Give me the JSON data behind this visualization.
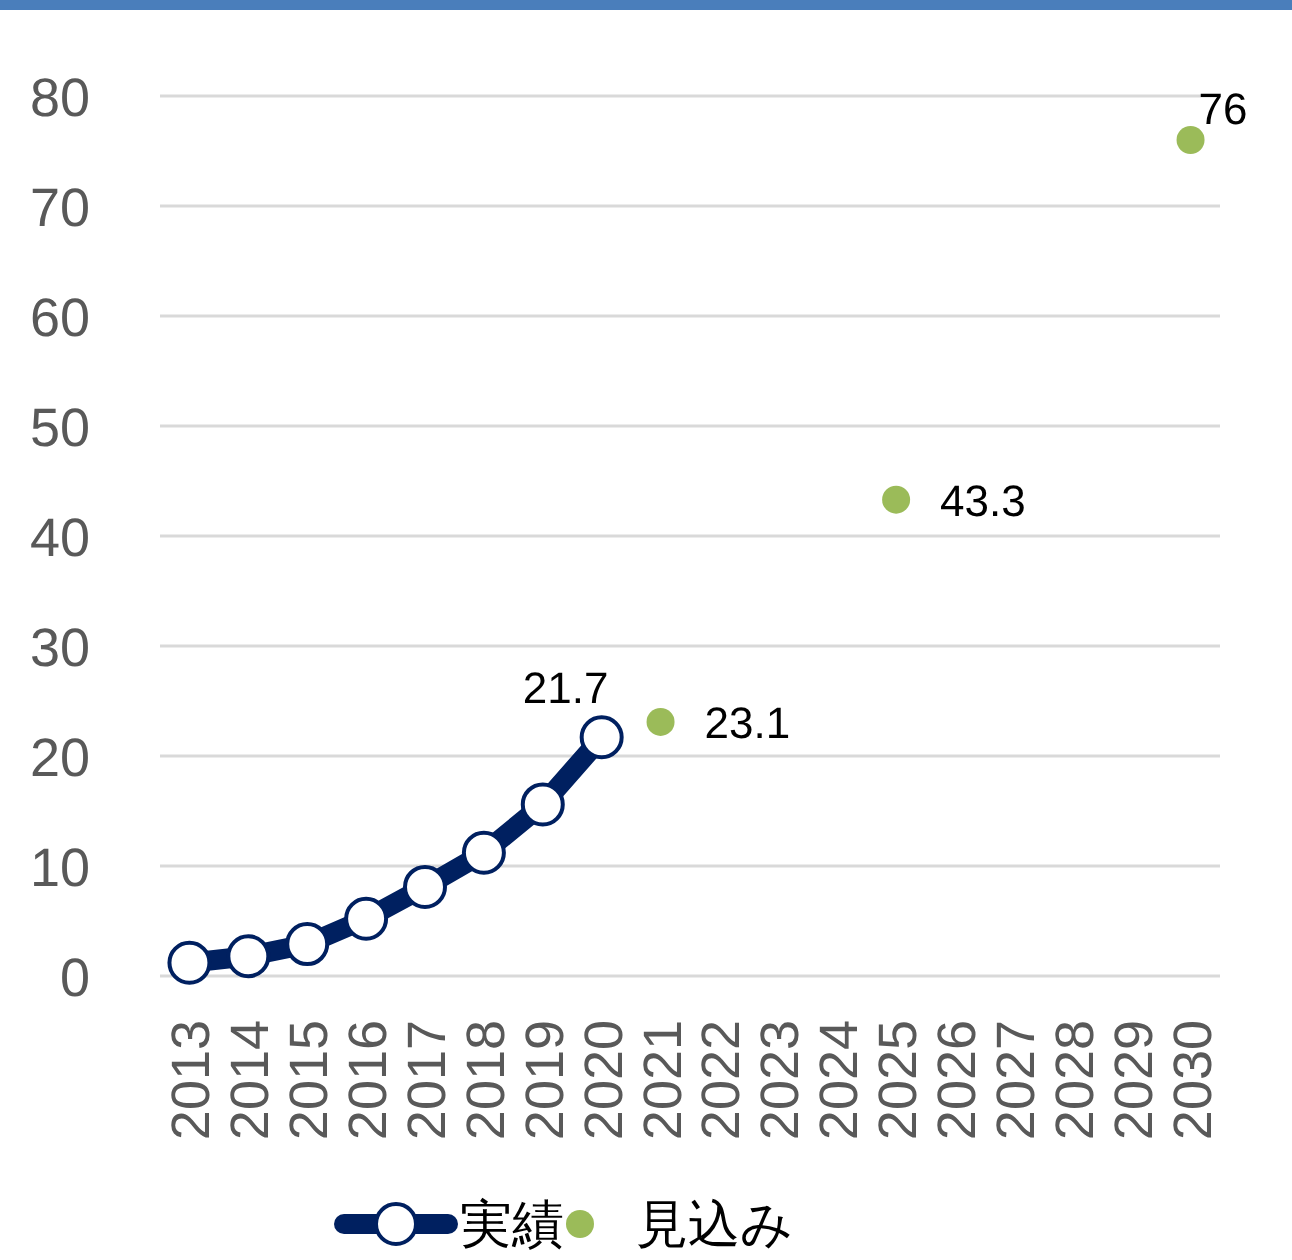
{
  "chart_data": {
    "type": "line",
    "categories": [
      "2013",
      "2014",
      "2015",
      "2016",
      "2017",
      "2018",
      "2019",
      "2020",
      "2021",
      "2022",
      "2023",
      "2024",
      "2025",
      "2026",
      "2027",
      "2028",
      "2029",
      "2030"
    ],
    "series": [
      {
        "name": "実績",
        "color": "#002060",
        "values": [
          1.2,
          1.8,
          2.9,
          5.2,
          8.1,
          11.2,
          15.6,
          21.7,
          null,
          null,
          null,
          null,
          null,
          null,
          null,
          null,
          null,
          null
        ],
        "value_labels": [
          null,
          null,
          null,
          null,
          null,
          null,
          null,
          "21.7",
          null,
          null,
          null,
          null,
          null,
          null,
          null,
          null,
          null,
          null
        ]
      },
      {
        "name": "見込み",
        "type": "scatter",
        "color": "#9bbb59",
        "values": [
          null,
          null,
          null,
          null,
          null,
          null,
          null,
          null,
          23.1,
          null,
          null,
          null,
          43.3,
          null,
          null,
          null,
          null,
          76
        ],
        "value_labels": [
          null,
          null,
          null,
          null,
          null,
          null,
          null,
          null,
          "23.1",
          null,
          null,
          null,
          "43.3",
          null,
          null,
          null,
          null,
          "76"
        ]
      }
    ],
    "ylim": [
      0,
      80
    ],
    "yticks": [
      0,
      10,
      20,
      30,
      40,
      50,
      60,
      70,
      80
    ],
    "grid": "y",
    "legend": "bottom",
    "marker": "circle",
    "line_style": "solid"
  }
}
